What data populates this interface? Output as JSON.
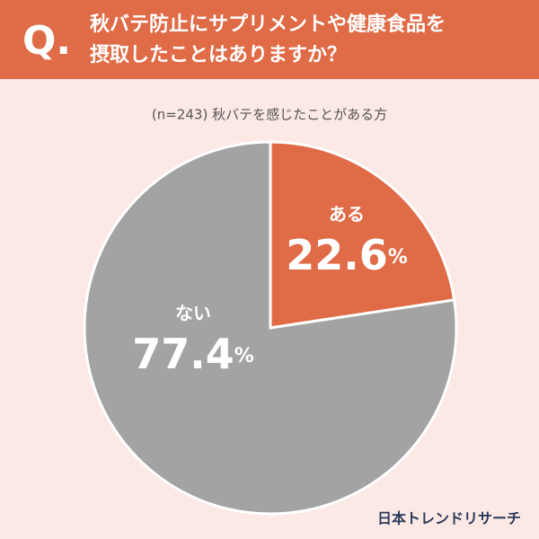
{
  "chart_data": {
    "type": "pie",
    "question_mark": "Q.",
    "title": [
      "秋バテ防止にサプリメントや健康食品を",
      "摂取したことはありますか？"
    ],
    "subtitle": "(n=243) 秋バテを感じたことがある方",
    "categories": [
      "ある",
      "ない"
    ],
    "values": [
      22.6,
      77.4
    ],
    "unit": "%",
    "colors": [
      "#e06b47",
      "#a3a3a3"
    ],
    "source": "日本トレンドリサーチ"
  }
}
